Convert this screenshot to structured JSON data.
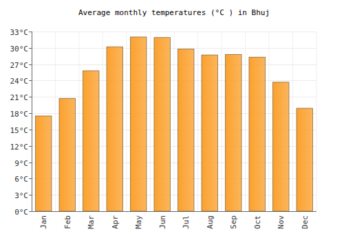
{
  "chart_data": {
    "type": "bar",
    "title": "Average monthly temperatures (°C ) in Bhuj",
    "categories": [
      "Jan",
      "Feb",
      "Mar",
      "Apr",
      "May",
      "Jun",
      "Jul",
      "Aug",
      "Sep",
      "Oct",
      "Nov",
      "Dec"
    ],
    "values": [
      17.5,
      20.7,
      25.8,
      30.2,
      32.0,
      31.9,
      29.8,
      28.7,
      28.8,
      28.3,
      23.7,
      18.9
    ],
    "color": "#fba12e",
    "ylim": [
      0,
      33
    ],
    "yticks": [
      {
        "value": 0,
        "label": "0°C"
      },
      {
        "value": 3,
        "label": "3°C"
      },
      {
        "value": 6,
        "label": "6°C"
      },
      {
        "value": 9,
        "label": "9°C"
      },
      {
        "value": 12,
        "label": "12°C"
      },
      {
        "value": 15,
        "label": "15°C"
      },
      {
        "value": 18,
        "label": "18°C"
      },
      {
        "value": 21,
        "label": "21°C"
      },
      {
        "value": 24,
        "label": "24°C"
      },
      {
        "value": 27,
        "label": "27°C"
      },
      {
        "value": 30,
        "label": "30°C"
      },
      {
        "value": 33,
        "label": "33°C"
      }
    ],
    "grid": true
  }
}
